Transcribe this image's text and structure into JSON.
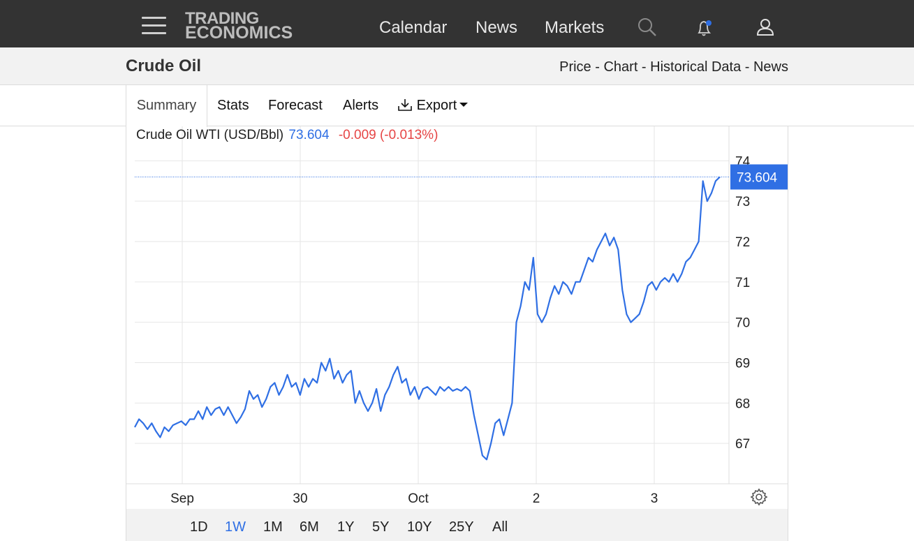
{
  "nav": {
    "logo_line1": "TRADING",
    "logo_line2": "ECONOMICS",
    "links": [
      "Calendar",
      "News",
      "Markets"
    ],
    "icons": [
      "menu-icon",
      "search-icon",
      "bell-icon",
      "user-icon"
    ],
    "notification_dot_color": "#2f6fe4"
  },
  "title": {
    "page_title": "Crude Oil",
    "crumbs": [
      "Price",
      "Chart",
      "Historical Data",
      "News"
    ],
    "separator": " - "
  },
  "tabs": {
    "items": [
      "Summary",
      "Stats",
      "Forecast",
      "Alerts",
      "Export"
    ],
    "active": "Summary"
  },
  "chart_header": {
    "name": "Crude Oil WTI (USD/Bbl)",
    "value": "73.604",
    "change": "-0.009 (-0.013%)"
  },
  "chart_data": {
    "type": "line",
    "series": [
      {
        "values": [
          67.4,
          67.6,
          67.5,
          67.35,
          67.5,
          67.3,
          67.15,
          67.4,
          67.3,
          67.45,
          67.5,
          67.55,
          67.45,
          67.6,
          67.6,
          67.8,
          67.6,
          67.9,
          67.7,
          67.85,
          67.9,
          67.7,
          67.9,
          67.7,
          67.5,
          67.65,
          67.85,
          68.3,
          68.1,
          68.2,
          67.9,
          68.1,
          68.4,
          68.5,
          68.2,
          68.4,
          68.7,
          68.4,
          68.5,
          68.2,
          68.6,
          68.4,
          68.6,
          68.5,
          69.0,
          68.8,
          69.1,
          68.6,
          68.8,
          68.5,
          68.7,
          68.8,
          68.0,
          68.3,
          68.0,
          67.8,
          68.0,
          68.35,
          67.8,
          68.2,
          68.4,
          68.7,
          68.9,
          68.5,
          68.6,
          68.2,
          68.4,
          68.1,
          68.35,
          68.4,
          68.3,
          68.2,
          68.4,
          68.3,
          68.4,
          68.3,
          68.35,
          68.3,
          68.4,
          68.3,
          67.7,
          67.2,
          66.7,
          66.6,
          67.0,
          67.5,
          67.6,
          67.2,
          67.6,
          68.0,
          70.0,
          70.4,
          71.0,
          70.8,
          71.6,
          70.2,
          70.0,
          70.2,
          70.6,
          70.9,
          70.7,
          71.0,
          70.9,
          70.7,
          71.0,
          71.0,
          71.3,
          71.6,
          71.5,
          71.8,
          72.0,
          72.2,
          71.9,
          72.1,
          71.8,
          70.8,
          70.2,
          70.0,
          70.1,
          70.2,
          70.5,
          70.9,
          71.0,
          70.8,
          71.0,
          71.1,
          71.0,
          71.2,
          71.0,
          71.2,
          71.5,
          71.6,
          71.8,
          72.0,
          73.5,
          73.0,
          73.2,
          73.5,
          73.6
        ]
      }
    ],
    "ylim": [
      66.0,
      74.3
    ],
    "yticks": [
      67,
      68,
      69,
      70,
      71,
      72,
      73,
      74
    ],
    "xticks": [
      "Sep",
      "30",
      "Oct",
      "2",
      "3"
    ],
    "last_value_label": "73.604",
    "line_color": "#2f6fe4",
    "grid": true
  },
  "ranges": {
    "items": [
      "1D",
      "1W",
      "1M",
      "6M",
      "1Y",
      "5Y",
      "10Y",
      "25Y",
      "All"
    ],
    "active": "1W"
  }
}
